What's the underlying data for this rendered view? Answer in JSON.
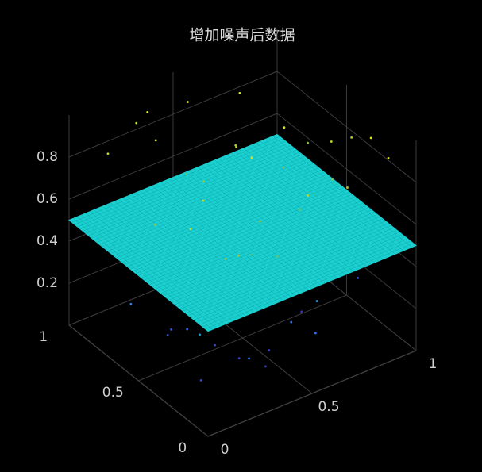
{
  "chart_data": {
    "type": "scatter3d",
    "title": "增加噪声后数据",
    "xlim": [
      0,
      1
    ],
    "ylim": [
      0,
      1
    ],
    "zlim": [
      0,
      1
    ],
    "xticks": [
      0,
      0.5,
      1
    ],
    "yticks": [
      0,
      0.5,
      1
    ],
    "zticks": [
      0.2,
      0.4,
      0.6,
      0.8
    ],
    "grid": true,
    "colormap": [
      "#3e26a8",
      "#2f77f4",
      "#14beb8",
      "#a8c634",
      "#f9fb15"
    ],
    "surface": {
      "z": 0.5,
      "color": "#1ad0d0"
    },
    "series": [
      {
        "x": [
          0.12,
          0.25,
          0.38,
          0.51,
          0.64,
          0.77,
          0.9,
          0.08,
          0.21,
          0.34,
          0.47,
          0.6,
          0.73,
          0.86,
          0.95,
          0.15,
          0.29,
          0.43,
          0.57,
          0.7,
          0.83,
          0.05,
          0.18,
          0.31,
          0.45,
          0.58,
          0.72,
          0.88,
          0.99,
          0.4,
          0.1,
          0.23,
          0.36,
          0.49,
          0.62,
          0.75,
          0.92,
          0.06,
          0.19,
          0.32,
          0.46,
          0.59,
          0.71,
          0.84,
          0.97,
          0.14,
          0.27,
          0.41,
          0.55,
          0.68,
          0.81,
          0.03,
          0.2,
          0.35,
          0.5,
          0.66,
          0.79,
          0.9,
          0.3,
          0.6
        ],
        "y": [
          0.9,
          0.75,
          0.6,
          0.45,
          0.3,
          0.15,
          0.05,
          0.5,
          0.35,
          0.2,
          0.85,
          0.7,
          0.55,
          0.4,
          0.25,
          0.1,
          0.95,
          0.8,
          0.65,
          0.5,
          0.35,
          0.2,
          0.05,
          0.9,
          0.3,
          0.15,
          0.85,
          0.6,
          0.45,
          0.1,
          0.2,
          0.05,
          0.9,
          0.75,
          0.6,
          0.45,
          0.3,
          0.15,
          0.55,
          0.4,
          0.25,
          0.1,
          0.95,
          0.8,
          0.65,
          0.5,
          0.35,
          0.2,
          0.05,
          0.9,
          0.75,
          0.6,
          0.45,
          0.3,
          0.15,
          0.7,
          0.55,
          0.95,
          0.4,
          0.85
        ],
        "z": [
          0.82,
          0.91,
          0.74,
          0.88,
          0.66,
          0.79,
          0.93,
          0.71,
          0.85,
          0.62,
          0.95,
          0.77,
          0.69,
          0.84,
          0.9,
          0.73,
          0.87,
          0.65,
          0.8,
          0.92,
          0.7,
          0.86,
          0.76,
          0.94,
          0.68,
          0.83,
          0.89,
          0.72,
          0.78,
          0.64,
          0.12,
          0.25,
          0.08,
          0.31,
          0.18,
          0.05,
          0.22,
          0.38,
          0.14,
          0.28,
          0.09,
          0.35,
          0.2,
          0.11,
          0.27,
          0.16,
          0.33,
          0.06,
          0.24,
          0.4,
          0.13,
          0.3,
          0.19,
          0.07,
          0.26,
          0.36,
          0.15,
          0.21,
          0.1,
          0.29
        ]
      }
    ]
  }
}
